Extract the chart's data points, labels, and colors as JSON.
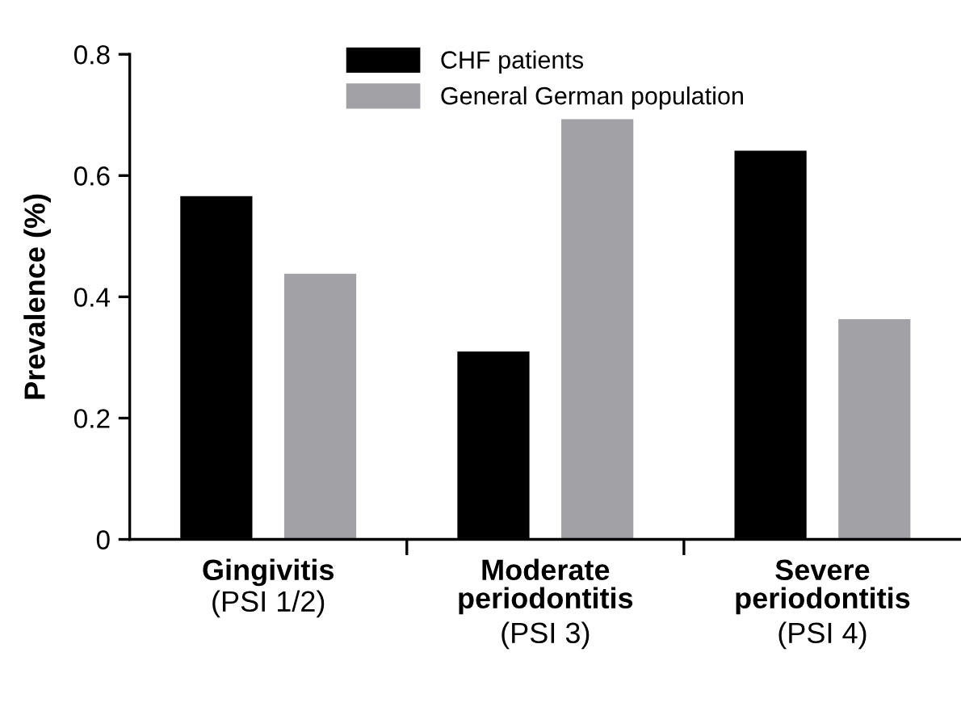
{
  "chart_data": {
    "type": "bar",
    "ylabel": "Prevalence (%)",
    "categories": [
      "Gingivitis\n(PSI 1/2)",
      "Moderate\nperiodontitis\n(PSI 3)",
      "Severe\nperiodontitis\n(PSI 4)"
    ],
    "series": [
      {
        "name": "CHF patients",
        "color": "#000000",
        "values": [
          0.566,
          0.31,
          0.641
        ]
      },
      {
        "name": "General German population",
        "color": "#a2a1a6",
        "values": [
          0.438,
          0.693,
          0.363
        ]
      }
    ],
    "ylim": [
      0,
      0.8
    ],
    "yticks": [
      0,
      0.2,
      0.4,
      0.6,
      0.8
    ],
    "grid": false,
    "legend": "top"
  }
}
